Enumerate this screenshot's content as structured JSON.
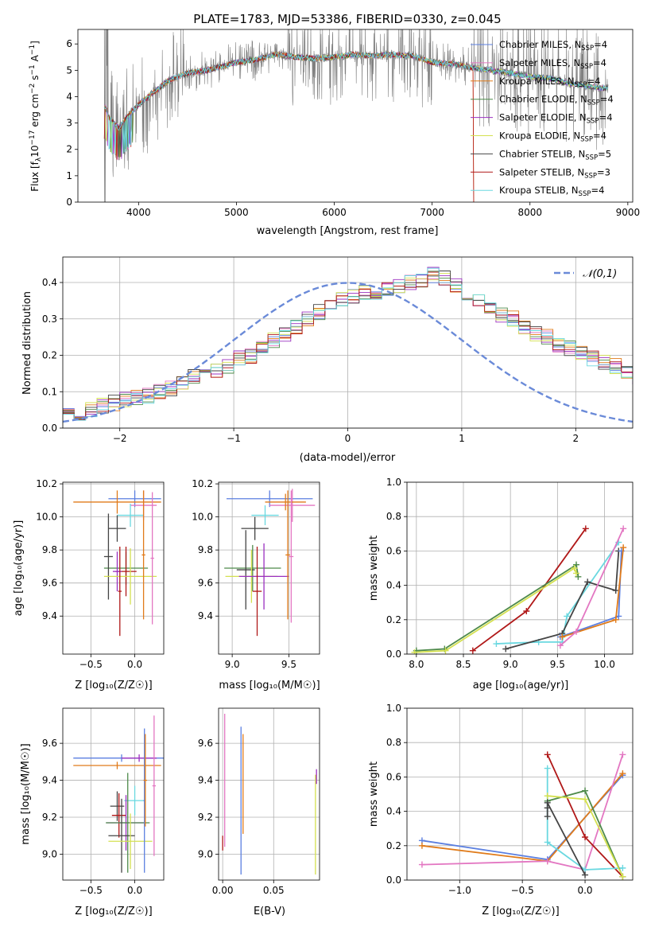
{
  "figure": {
    "title": "PLATE=1783, MJD=53386, FIBERID=0330, z=0.045"
  },
  "colors": {
    "chabrier_miles": "#5b7fe0",
    "salpeter_miles": "#e377c2",
    "kroupa_miles": "#e07b1a",
    "chabrier_elodie": "#4e8a4a",
    "salpeter_elodie": "#9b30c0",
    "kroupa_elodie": "#d4e050",
    "chabrier_stelib": "#444444",
    "salpeter_stelib": "#b01818",
    "kroupa_stelib": "#6ad8e0",
    "data": "#808080"
  },
  "legend": [
    {
      "label": "Chabrier MILES, N",
      "sub": "SSP",
      "tail": "=4",
      "color": "#5b7fe0"
    },
    {
      "label": "Salpeter MILES, N",
      "sub": "SSP",
      "tail": "=4",
      "color": "#e377c2"
    },
    {
      "label": "Kroupa MILES, N",
      "sub": "SSP",
      "tail": "=4",
      "color": "#e07b1a"
    },
    {
      "label": "Chabrier ELODIE, N",
      "sub": "SSP",
      "tail": "=4",
      "color": "#4e8a4a"
    },
    {
      "label": "Salpeter ELODIE, N",
      "sub": "SSP",
      "tail": "=4",
      "color": "#9b30c0"
    },
    {
      "label": "Kroupa ELODIE, N",
      "sub": "SSP",
      "tail": "=4",
      "color": "#d4e050"
    },
    {
      "label": "Chabrier STELIB, N",
      "sub": "SSP",
      "tail": "=5",
      "color": "#444444"
    },
    {
      "label": "Salpeter STELIB, N",
      "sub": "SSP",
      "tail": "=3",
      "color": "#b01818"
    },
    {
      "label": "Kroupa STELIB, N",
      "sub": "SSP",
      "tail": "=4",
      "color": "#6ad8e0"
    }
  ],
  "chart_data": [
    {
      "id": "spectrum",
      "type": "line",
      "xlabel": "wavelength [Angstrom, rest frame]",
      "ylabel": "Flux [fλ10⁻¹⁷ erg cm⁻² s⁻¹ A⁻¹]",
      "xlim": [
        3380,
        9050
      ],
      "ylim": [
        0,
        6.55
      ],
      "xticks": [
        4000,
        5000,
        6000,
        7000,
        8000,
        9000
      ],
      "yticks": [
        0,
        1,
        2,
        3,
        4,
        5,
        6
      ],
      "continuum": {
        "x": [
          3650,
          3700,
          3800,
          3900,
          4000,
          4100,
          4300,
          4500,
          4700,
          5000,
          5200,
          5400,
          5600,
          5800,
          6000,
          6200,
          6400,
          6600,
          6800,
          7000,
          7200,
          7400,
          7600,
          7800,
          8000,
          8200,
          8400,
          8600,
          8800
        ],
        "y": [
          3.7,
          3.2,
          2.8,
          3.3,
          3.7,
          4.0,
          4.6,
          4.9,
          5.0,
          5.3,
          5.4,
          5.6,
          5.5,
          5.45,
          5.5,
          5.6,
          5.55,
          5.6,
          5.55,
          5.3,
          5.25,
          5.1,
          5.0,
          4.9,
          4.75,
          4.7,
          4.5,
          4.4,
          4.3
        ]
      }
    },
    {
      "id": "residuals",
      "type": "bar",
      "xlabel": "(data-model)/error",
      "ylabel": "Normed distribution",
      "xlim": [
        -2.5,
        2.5
      ],
      "ylim": [
        0,
        0.47
      ],
      "xticks": [
        -2,
        -1,
        0,
        1,
        2
      ],
      "yticks": [
        0.0,
        0.1,
        0.2,
        0.3,
        0.4
      ],
      "bin_width": 0.1,
      "reference": {
        "name": "𝒩(0,1)",
        "mean": 0,
        "sigma": 1
      },
      "hist": [
        0.035,
        0.03,
        0.04,
        0.04,
        0.05,
        0.06,
        0.07,
        0.08,
        0.085,
        0.09,
        0.1,
        0.11,
        0.12,
        0.14,
        0.15,
        0.16,
        0.17,
        0.19,
        0.2,
        0.22,
        0.24,
        0.26,
        0.28,
        0.3,
        0.32,
        0.33,
        0.35,
        0.36,
        0.37,
        0.37,
        0.38,
        0.39,
        0.4,
        0.41,
        0.42,
        0.41,
        0.39,
        0.37,
        0.35,
        0.33,
        0.31,
        0.3,
        0.28,
        0.26,
        0.25,
        0.23,
        0.22,
        0.21,
        0.19,
        0.18,
        0.17,
        0.15,
        0.14,
        0.13,
        0.12,
        0.1,
        0.09,
        0.085,
        0.08,
        0.07,
        0.06,
        0.05,
        0.045,
        0.04,
        0.035,
        0.03,
        0.03,
        0.03
      ]
    },
    {
      "id": "z_vs_age",
      "type": "scatter",
      "xlabel": "Z [log₁₀(Z/Z☉)]",
      "ylabel": "age  [log₁₀(age/yr)]",
      "xlim": [
        -0.82,
        0.33
      ],
      "ylim": [
        9.17,
        10.21
      ],
      "xticks": [
        -0.5,
        0.0
      ],
      "xticklabels": [
        "−0.5",
        "0.0"
      ],
      "yticks": [
        9.4,
        9.6,
        9.8,
        10.0,
        10.2
      ],
      "points": [
        {
          "c": "#5b7fe0",
          "x": 0.0,
          "xerr": 0.3,
          "y": 10.11,
          "yerr": 0.05
        },
        {
          "c": "#e07b1a",
          "x": -0.2,
          "xerr": 0.5,
          "y": 10.09,
          "yerr": 0.07
        },
        {
          "c": "#e377c2",
          "x": 0.1,
          "xerr": 0.15,
          "y": 10.07,
          "yerr": 0.09
        },
        {
          "c": "#6ad8e0",
          "x": -0.05,
          "xerr": 0.15,
          "y": 10.01,
          "yerr": 0.07
        },
        {
          "c": "#444444",
          "x": -0.2,
          "xerr": 0.1,
          "y": 9.93,
          "yerr": 0.08
        },
        {
          "c": "#4e8a4a",
          "x": -0.1,
          "xerr": 0.25,
          "y": 9.69,
          "yerr": 0.1
        },
        {
          "c": "#444444",
          "x": -0.3,
          "xerr": 0.05,
          "y": 9.76,
          "yerr": 0.26
        },
        {
          "c": "#b01818",
          "x": -0.1,
          "xerr": 0.12,
          "y": 9.67,
          "yerr": 0.15
        },
        {
          "c": "#9b30c0",
          "x": -0.2,
          "xerr": 0.05,
          "y": 9.67,
          "yerr": 0.12
        },
        {
          "c": "#d4e050",
          "x": -0.05,
          "xerr": 0.3,
          "y": 9.64,
          "yerr": 0.17
        },
        {
          "c": "#b01818",
          "x": -0.17,
          "xerr": 0.02,
          "y": 9.55,
          "yerr": 0.27
        },
        {
          "c": "#e07b1a",
          "x": 0.1,
          "xerr": 0.02,
          "y": 9.77,
          "yerr": 0.39
        },
        {
          "c": "#e377c2",
          "x": 0.2,
          "xerr": 0.02,
          "y": 9.75,
          "yerr": 0.4
        }
      ]
    },
    {
      "id": "mass_vs_age",
      "type": "scatter",
      "xlabel": "mass [log₁₀(M/M☉)]",
      "ylabel": "",
      "xlim": [
        8.88,
        9.77
      ],
      "ylim": [
        9.17,
        10.21
      ],
      "xticks": [
        9.0,
        9.5
      ],
      "yticks": [
        9.4,
        9.6,
        9.8,
        10.0,
        10.2
      ],
      "points": [
        {
          "c": "#5b7fe0",
          "x": 9.33,
          "xerr": 0.38,
          "y": 10.11,
          "yerr": 0.05
        },
        {
          "c": "#e377c2",
          "x": 9.53,
          "xerr": 0.2,
          "y": 10.07,
          "yerr": 0.1
        },
        {
          "c": "#e07b1a",
          "x": 9.47,
          "xerr": 0.18,
          "y": 10.09,
          "yerr": 0.05
        },
        {
          "c": "#6ad8e0",
          "x": 9.29,
          "xerr": 0.12,
          "y": 10.01,
          "yerr": 0.06
        },
        {
          "c": "#444444",
          "x": 9.2,
          "xerr": 0.12,
          "y": 9.93,
          "yerr": 0.07
        },
        {
          "c": "#4e8a4a",
          "x": 9.18,
          "xerr": 0.25,
          "y": 9.69,
          "yerr": 0.14
        },
        {
          "c": "#444444",
          "x": 9.12,
          "xerr": 0.08,
          "y": 9.68,
          "yerr": 0.24
        },
        {
          "c": "#d4e050",
          "x": 9.17,
          "xerr": 0.23,
          "y": 9.64,
          "yerr": 0.16
        },
        {
          "c": "#9b30c0",
          "x": 9.28,
          "xerr": 0.22,
          "y": 9.64,
          "yerr": 0.2
        },
        {
          "c": "#b01818",
          "x": 9.22,
          "xerr": 0.04,
          "y": 9.55,
          "yerr": 0.27
        },
        {
          "c": "#e377c2",
          "x": 9.52,
          "xerr": 0.02,
          "y": 9.76,
          "yerr": 0.4
        },
        {
          "c": "#e07b1a",
          "x": 9.49,
          "xerr": 0.02,
          "y": 9.77,
          "yerr": 0.39
        }
      ]
    },
    {
      "id": "age_vs_weight",
      "type": "line",
      "xlabel": "age  [log₁₀(age/yr)]",
      "ylabel": "mass weight",
      "xlim": [
        7.9,
        10.3
      ],
      "ylim": [
        0,
        1.0
      ],
      "xticks": [
        8.0,
        8.5,
        9.0,
        9.5,
        10.0
      ],
      "yticks": [
        0.0,
        0.2,
        0.4,
        0.6,
        0.8,
        1.0
      ],
      "series": [
        {
          "c": "#b01818",
          "x": [
            8.6,
            9.17,
            9.8
          ],
          "y": [
            0.02,
            0.25,
            0.73
          ]
        },
        {
          "c": "#4e8a4a",
          "x": [
            8.0,
            8.3,
            9.7,
            9.72
          ],
          "y": [
            0.02,
            0.03,
            0.52,
            0.45
          ]
        },
        {
          "c": "#d4e050",
          "x": [
            7.98,
            8.31,
            9.68,
            9.7
          ],
          "y": [
            0.01,
            0.02,
            0.5,
            0.47
          ]
        },
        {
          "c": "#6ad8e0",
          "x": [
            8.85,
            9.3,
            9.55,
            9.6,
            10.15
          ],
          "y": [
            0.06,
            0.07,
            0.07,
            0.22,
            0.65
          ]
        },
        {
          "c": "#444444",
          "x": [
            8.95,
            9.55,
            9.82,
            10.12,
            10.15
          ],
          "y": [
            0.03,
            0.12,
            0.42,
            0.37,
            0.6
          ]
        },
        {
          "c": "#5b7fe0",
          "x": [
            9.53,
            10.15,
            10.18
          ],
          "y": [
            0.1,
            0.22,
            0.6
          ]
        },
        {
          "c": "#e07b1a",
          "x": [
            9.55,
            10.12,
            10.2
          ],
          "y": [
            0.1,
            0.2,
            0.62
          ]
        },
        {
          "c": "#e377c2",
          "x": [
            9.53,
            9.7,
            10.2
          ],
          "y": [
            0.05,
            0.13,
            0.73
          ]
        }
      ]
    },
    {
      "id": "z_vs_mass",
      "type": "scatter",
      "xlabel": "Z [log₁₀(Z/Z☉)]",
      "ylabel": "mass [log₁₀(M/M☉)]",
      "xlim": [
        -0.82,
        0.33
      ],
      "ylim": [
        8.86,
        9.79
      ],
      "xticks": [
        -0.5,
        0.0
      ],
      "xticklabels": [
        "−0.5",
        "0.0"
      ],
      "yticks": [
        9.0,
        9.2,
        9.4,
        9.6
      ],
      "points": [
        {
          "c": "#5b7fe0",
          "x": -0.15,
          "xerr": 0.55,
          "y": 9.52,
          "yerr": 0.02
        },
        {
          "c": "#e07b1a",
          "x": -0.2,
          "xerr": 0.5,
          "y": 9.48,
          "yerr": 0.02
        },
        {
          "c": "#9b30c0",
          "x": 0.05,
          "xerr": 0.2,
          "y": 9.52,
          "yerr": 0.02
        },
        {
          "c": "#6ad8e0",
          "x": 0.0,
          "xerr": 0.12,
          "y": 9.29,
          "yerr": 0.08
        },
        {
          "c": "#444444",
          "x": -0.2,
          "xerr": 0.08,
          "y": 9.26,
          "yerr": 0.08
        },
        {
          "c": "#b01818",
          "x": -0.18,
          "xerr": 0.08,
          "y": 9.21,
          "yerr": 0.12
        },
        {
          "c": "#9b30c0",
          "x": -0.1,
          "xerr": 0.22,
          "y": 9.17,
          "yerr": 0.15
        },
        {
          "c": "#4e8a4a",
          "x": -0.08,
          "xerr": 0.25,
          "y": 9.17,
          "yerr": 0.27
        },
        {
          "c": "#444444",
          "x": -0.15,
          "xerr": 0.15,
          "y": 9.1,
          "yerr": 0.2
        },
        {
          "c": "#d4e050",
          "x": -0.05,
          "xerr": 0.25,
          "y": 9.07,
          "yerr": 0.15
        },
        {
          "c": "#5b7fe0",
          "x": 0.11,
          "xerr": 0.01,
          "y": 9.29,
          "yerr": 0.39
        },
        {
          "c": "#e377c2",
          "x": 0.22,
          "xerr": 0.02,
          "y": 9.37,
          "yerr": 0.38
        },
        {
          "c": "#e07b1a",
          "x": 0.12,
          "xerr": 0.02,
          "y": 9.4,
          "yerr": 0.25
        }
      ]
    },
    {
      "id": "ebv_vs_mass",
      "type": "scatter",
      "xlabel": "E(B-V)",
      "ylabel": "",
      "xlim": [
        -0.004,
        0.095
      ],
      "ylim": [
        8.86,
        9.79
      ],
      "xticks": [
        0.0,
        0.05
      ],
      "xticklabels": [
        "0.00",
        "0.05"
      ],
      "yticks": [
        9.0,
        9.2,
        9.4,
        9.6
      ],
      "points": [
        {
          "c": "#b01818",
          "x": 0.0,
          "xerr": 0.0,
          "y": 9.06,
          "yerr": 0.04
        },
        {
          "c": "#e377c2",
          "x": 0.002,
          "xerr": 0.0,
          "y": 9.4,
          "yerr": 0.36
        },
        {
          "c": "#5b7fe0",
          "x": 0.018,
          "xerr": 0.0,
          "y": 9.29,
          "yerr": 0.4
        },
        {
          "c": "#e07b1a",
          "x": 0.02,
          "xerr": 0.0,
          "y": 9.38,
          "yerr": 0.27
        },
        {
          "c": "#d4e050",
          "x": 0.091,
          "xerr": 0.0,
          "y": 9.16,
          "yerr": 0.27
        },
        {
          "c": "#9b30c0",
          "x": 0.092,
          "xerr": 0.0,
          "y": 9.42,
          "yerr": 0.04
        }
      ]
    },
    {
      "id": "z_vs_weight",
      "type": "line",
      "xlabel": "Z [log₁₀(Z/Z☉)]",
      "ylabel": "mass weight",
      "xlim": [
        -1.42,
        0.38
      ],
      "ylim": [
        0,
        1.0
      ],
      "xticks": [
        -1.0,
        -0.5,
        0.0
      ],
      "xticklabels": [
        "−1.0",
        "−0.5",
        "0.0"
      ],
      "yticks": [
        0.0,
        0.2,
        0.4,
        0.6,
        0.8,
        1.0
      ],
      "series": [
        {
          "c": "#5b7fe0",
          "x": [
            -1.3,
            -0.3,
            0.3
          ],
          "y": [
            0.23,
            0.12,
            0.61
          ]
        },
        {
          "c": "#e07b1a",
          "x": [
            -1.3,
            -0.3,
            0.3
          ],
          "y": [
            0.2,
            0.11,
            0.62
          ]
        },
        {
          "c": "#e377c2",
          "x": [
            -1.3,
            -0.3,
            0.0,
            0.3
          ],
          "y": [
            0.09,
            0.11,
            0.06,
            0.73
          ]
        },
        {
          "c": "#b01818",
          "x": [
            -0.3,
            0.0,
            0.3
          ],
          "y": [
            0.73,
            0.25,
            0.02
          ]
        },
        {
          "c": "#6ad8e0",
          "x": [
            -0.3,
            -0.3,
            0.0,
            0.3
          ],
          "y": [
            0.65,
            0.22,
            0.06,
            0.07
          ]
        },
        {
          "c": "#4e8a4a",
          "x": [
            -0.3,
            0.0,
            0.3
          ],
          "y": [
            0.46,
            0.52,
            0.02
          ]
        },
        {
          "c": "#d4e050",
          "x": [
            -0.3,
            0.0,
            0.3
          ],
          "y": [
            0.49,
            0.47,
            0.02
          ]
        },
        {
          "c": "#444444",
          "x": [
            -0.3,
            -0.3,
            -0.3,
            0.0
          ],
          "y": [
            0.37,
            0.42,
            0.45,
            0.03
          ]
        }
      ]
    }
  ]
}
